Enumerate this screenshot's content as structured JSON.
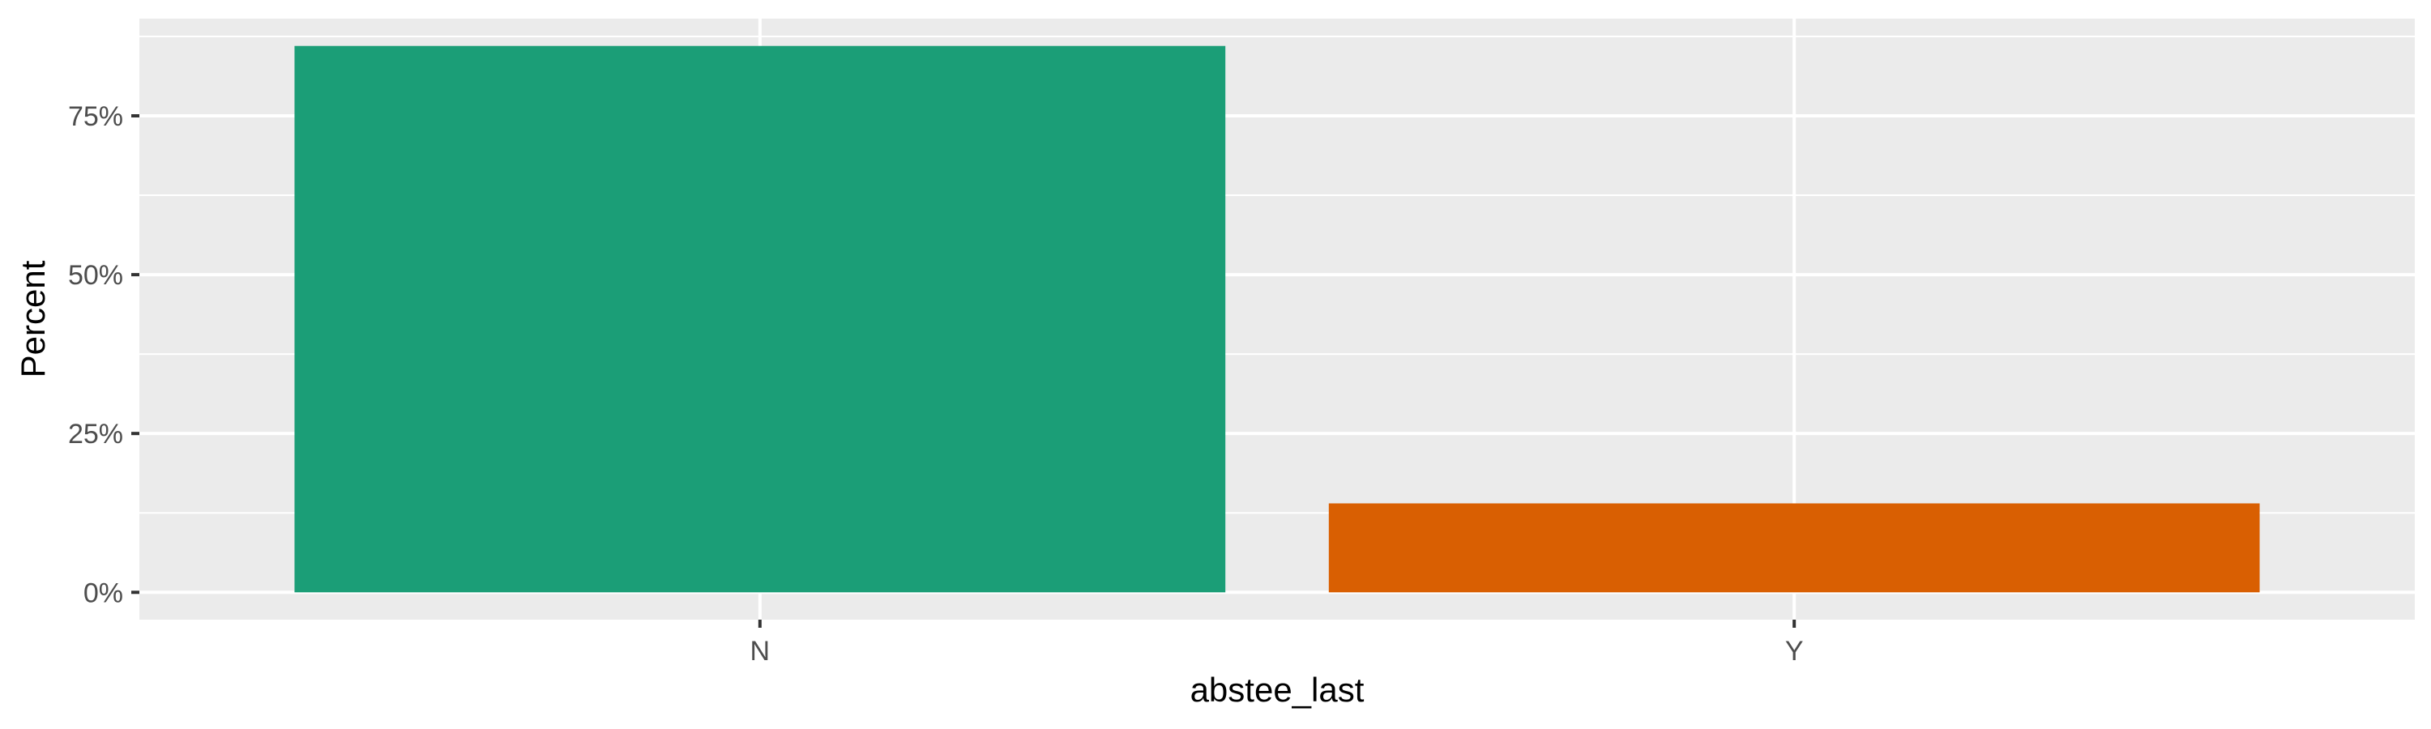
{
  "chart_data": {
    "type": "bar",
    "categories": [
      "N",
      "Y"
    ],
    "values": [
      86,
      14
    ],
    "colors": [
      "#1b9e77",
      "#d95f02"
    ],
    "xlabel": "abstee_last",
    "ylabel": "Percent",
    "ylim": [
      -4.3,
      90.3
    ],
    "yticks": [
      0,
      25,
      50,
      75
    ],
    "ytick_labels": [
      "0%",
      "25%",
      "50%",
      "75%"
    ],
    "panel_background": "#ebebeb",
    "grid": true,
    "grid_color": "#ffffff",
    "legend": "none"
  }
}
